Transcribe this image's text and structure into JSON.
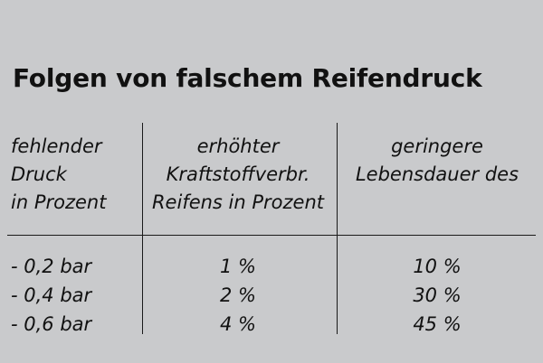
{
  "title": "Folgen von falschem Reifendruck",
  "headers": {
    "col1": [
      "fehlender",
      "Druck",
      "in Prozent"
    ],
    "col2": [
      "erhöhter",
      "Kraftstoffverbr.",
      "Reifens in Prozent"
    ],
    "col3": [
      "geringere",
      "Lebensdauer des"
    ]
  },
  "rows": [
    {
      "pressure": "- 0,2 bar",
      "fuel": "1 %",
      "life": "10 %"
    },
    {
      "pressure": "- 0,4 bar",
      "fuel": "2 %",
      "life": "30 %"
    },
    {
      "pressure": "- 0,6 bar",
      "fuel": "4 %",
      "life": "45 %"
    }
  ]
}
